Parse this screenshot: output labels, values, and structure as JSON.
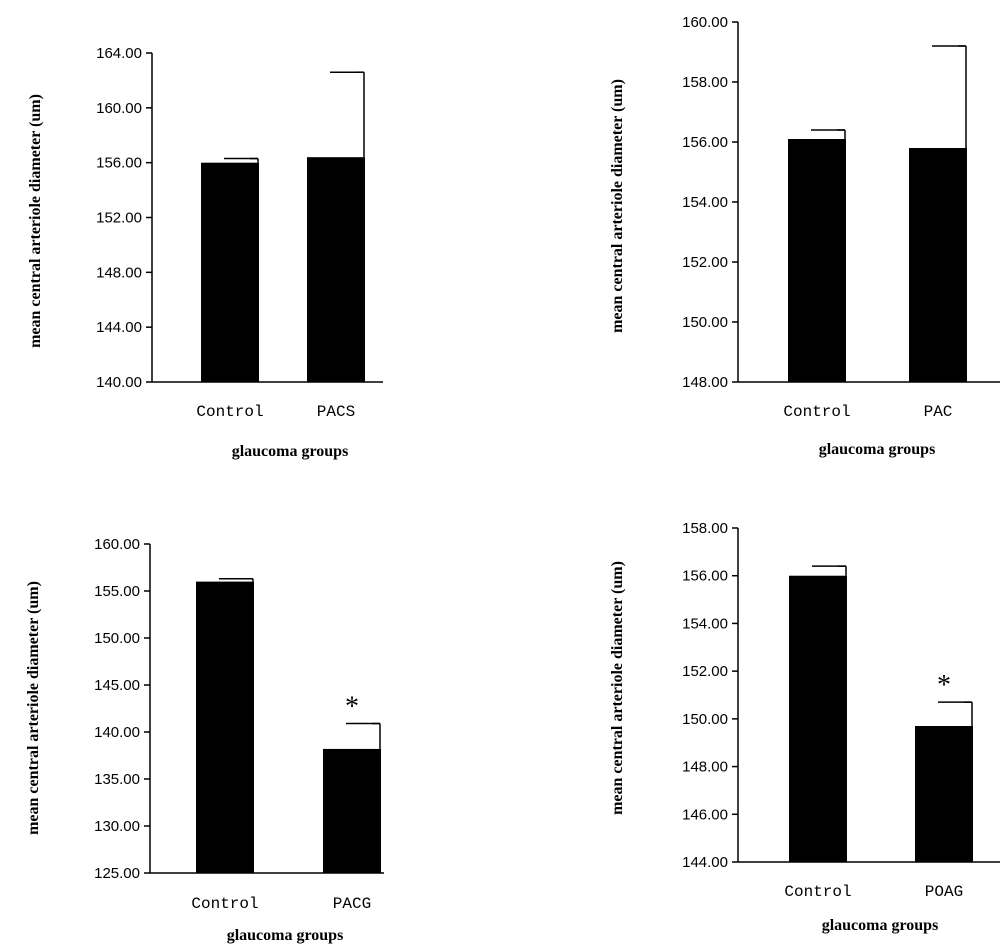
{
  "chart_data": [
    {
      "type": "bar",
      "categories": [
        "Control",
        "PACS"
      ],
      "values": [
        156.0,
        156.4
      ],
      "errors": [
        0.3,
        6.2
      ],
      "annotations": [
        "",
        ""
      ],
      "ylim": [
        140,
        164
      ],
      "yticks": [
        140,
        144,
        148,
        152,
        156,
        160,
        164
      ],
      "ytick_labels": [
        "140.00",
        "144.00",
        "148.00",
        "152.00",
        "156.00",
        "160.00",
        "164.00"
      ],
      "xlabel": "glaucoma groups",
      "ylabel": "mean central arteriole diameter (um)"
    },
    {
      "type": "bar",
      "categories": [
        "Control",
        "PAC"
      ],
      "values": [
        156.1,
        155.8
      ],
      "errors": [
        0.3,
        3.4
      ],
      "annotations": [
        "",
        ""
      ],
      "ylim": [
        148,
        160
      ],
      "yticks": [
        148,
        150,
        152,
        154,
        156,
        158,
        160
      ],
      "ytick_labels": [
        "148.00",
        "150.00",
        "152.00",
        "154.00",
        "156.00",
        "158.00",
        "160.00"
      ],
      "xlabel": "glaucoma groups",
      "ylabel": "mean central arteriole diameter (um)"
    },
    {
      "type": "bar",
      "categories": [
        "Control",
        "PACG"
      ],
      "values": [
        156.0,
        138.2
      ],
      "errors": [
        0.3,
        2.7
      ],
      "annotations": [
        "",
        "*"
      ],
      "ylim": [
        125,
        160
      ],
      "yticks": [
        125,
        130,
        135,
        140,
        145,
        150,
        155,
        160
      ],
      "ytick_labels": [
        "125.00",
        "130.00",
        "135.00",
        "140.00",
        "145.00",
        "150.00",
        "155.00",
        "160.00"
      ],
      "xlabel": "glaucoma groups",
      "ylabel": "mean central arteriole diameter (um)"
    },
    {
      "type": "bar",
      "categories": [
        "Control",
        "POAG"
      ],
      "values": [
        156.0,
        149.7
      ],
      "errors": [
        0.4,
        1.0
      ],
      "annotations": [
        "",
        "*"
      ],
      "ylim": [
        144,
        158
      ],
      "yticks": [
        144,
        146,
        148,
        150,
        152,
        154,
        156,
        158
      ],
      "ytick_labels": [
        "144.00",
        "146.00",
        "148.00",
        "150.00",
        "152.00",
        "154.00",
        "156.00",
        "158.00"
      ],
      "xlabel": "glaucoma groups",
      "ylabel": "mean central arteriole diameter (um)"
    }
  ]
}
